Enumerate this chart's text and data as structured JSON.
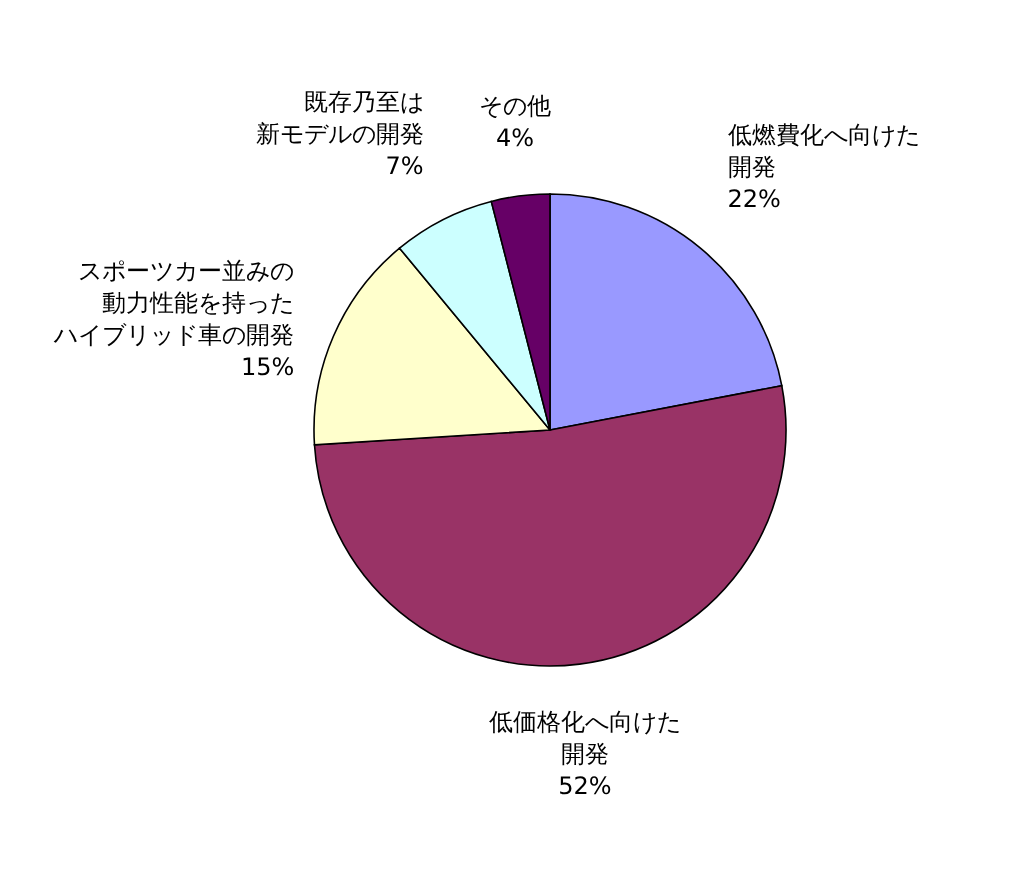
{
  "chart_data": {
    "type": "pie",
    "categories": [
      "低燃費化へ向けた開発",
      "低価格化へ向けた開発",
      "スポーツカー並みの動力性能を持ったハイブリッド車の開発",
      "既存乃至は新モデルの開発",
      "その他"
    ],
    "values": [
      22,
      52,
      15,
      7,
      4
    ],
    "value_labels": [
      "22%",
      "52%",
      "15%",
      "7%",
      "4%"
    ],
    "colors": [
      "#9999ff",
      "#993366",
      "#ffffcc",
      "#ccffff",
      "#660066"
    ],
    "legend": false
  }
}
